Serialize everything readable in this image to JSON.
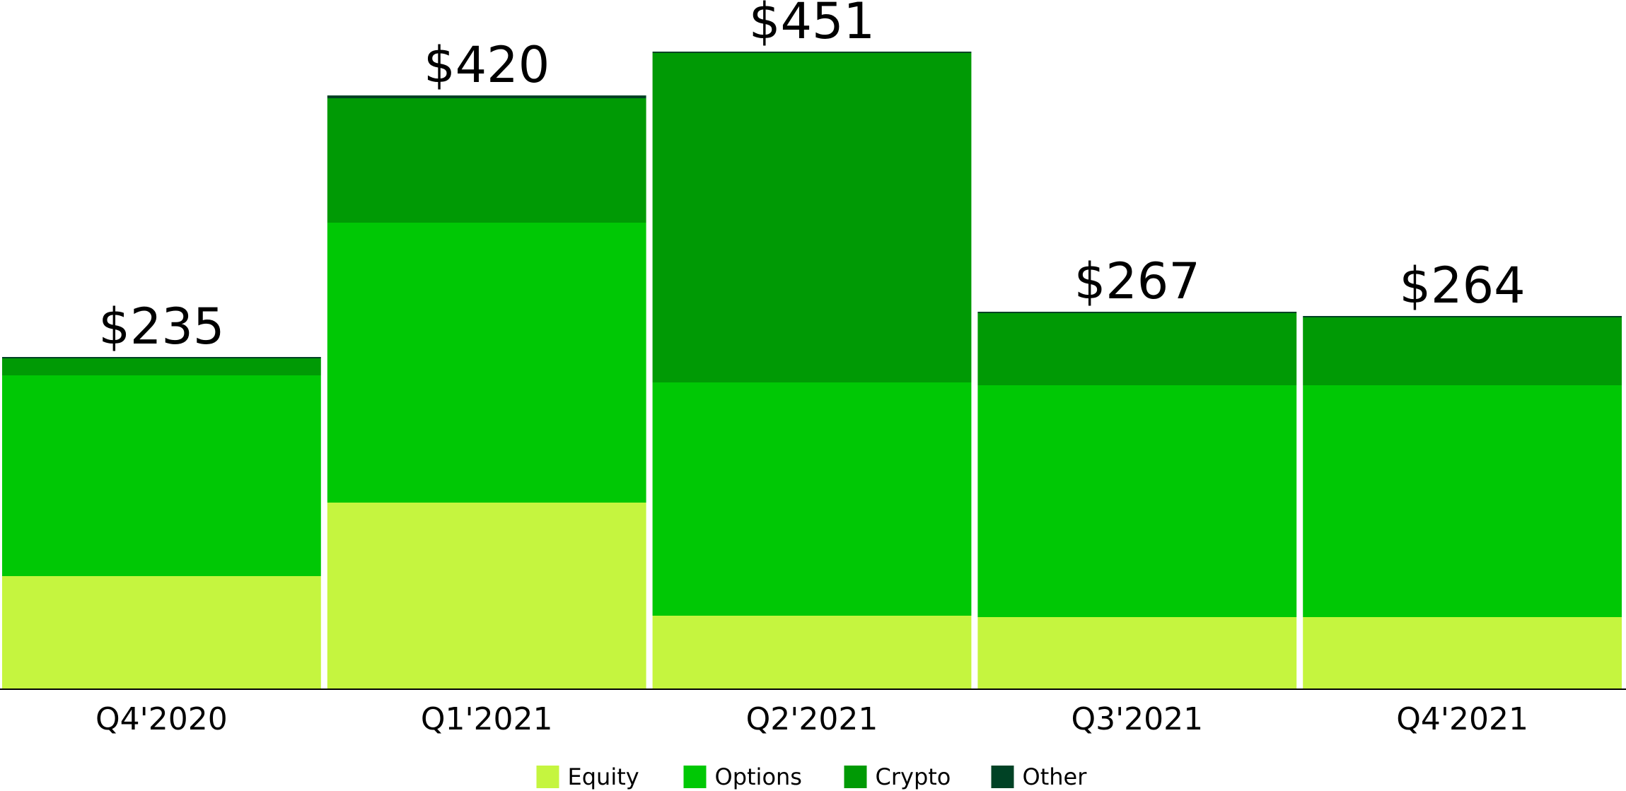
{
  "chart_data": {
    "type": "stacked_bar",
    "categories": [
      "Q4'2020",
      "Q1'2021",
      "Q2'2021",
      "Q3'2021",
      "Q4'2021"
    ],
    "series": [
      {
        "name": "Equity",
        "color": "#c5f53f",
        "values": [
          80,
          132,
          52,
          51,
          51
        ]
      },
      {
        "name": "Options",
        "color": "#00c805",
        "values": [
          142,
          198,
          165,
          164,
          164
        ]
      },
      {
        "name": "Crypto",
        "color": "#009a05",
        "values": [
          12,
          88,
          233,
          51,
          48
        ]
      },
      {
        "name": "Other",
        "color": "#004225",
        "values": [
          1,
          2,
          1,
          1,
          1
        ]
      }
    ],
    "totals": [
      235,
      420,
      451,
      267,
      264
    ],
    "total_labels": [
      "$235",
      "$420",
      "$451",
      "$267",
      "$264"
    ],
    "ylim": [
      0,
      480
    ],
    "legend": "bottom"
  }
}
